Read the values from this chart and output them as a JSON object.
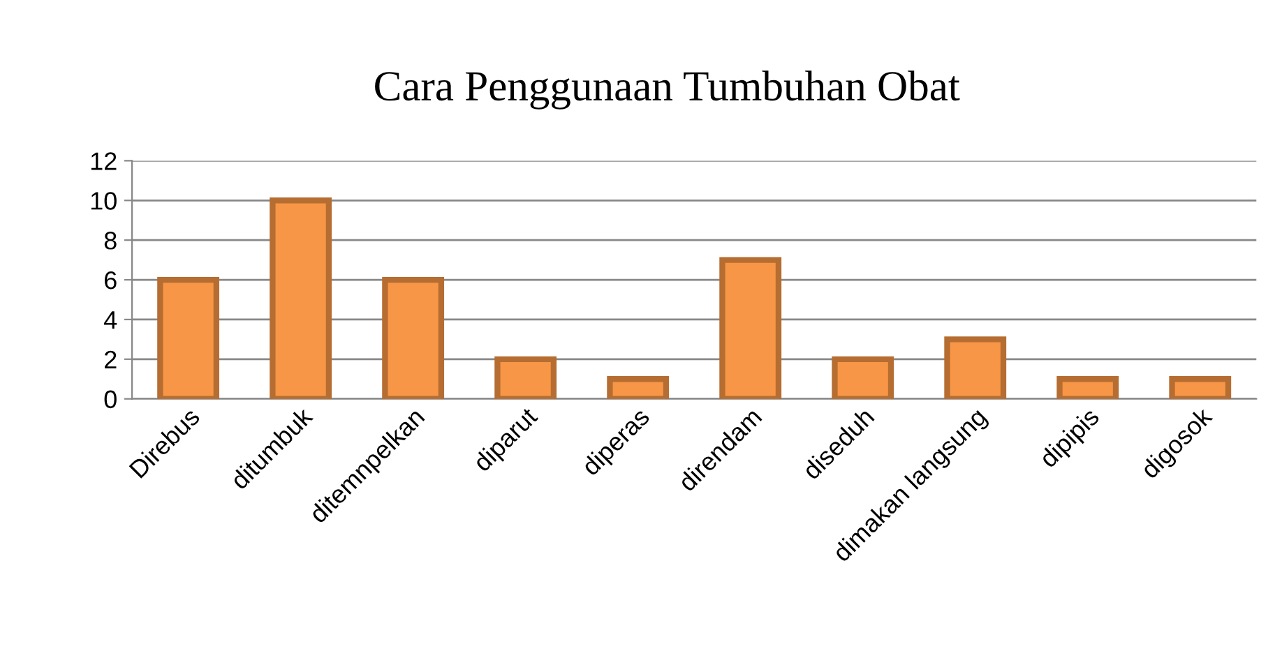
{
  "chart_data": {
    "type": "bar",
    "title": "Cara Penggunaan Tumbuhan Obat",
    "categories": [
      "Direbus",
      "ditumbuk",
      "ditemnpelkan",
      "diparut",
      "diperas",
      "direndam",
      "diseduh",
      "dimakan langsung",
      "dipipis",
      "digosok"
    ],
    "values": [
      6,
      10,
      6,
      2,
      1,
      7,
      2,
      3,
      1,
      1
    ],
    "color": "#f79646",
    "ylim": [
      0,
      12
    ],
    "yticks": [
      0,
      2,
      4,
      6,
      8,
      10,
      12
    ],
    "grid": "y",
    "legend": false
  }
}
